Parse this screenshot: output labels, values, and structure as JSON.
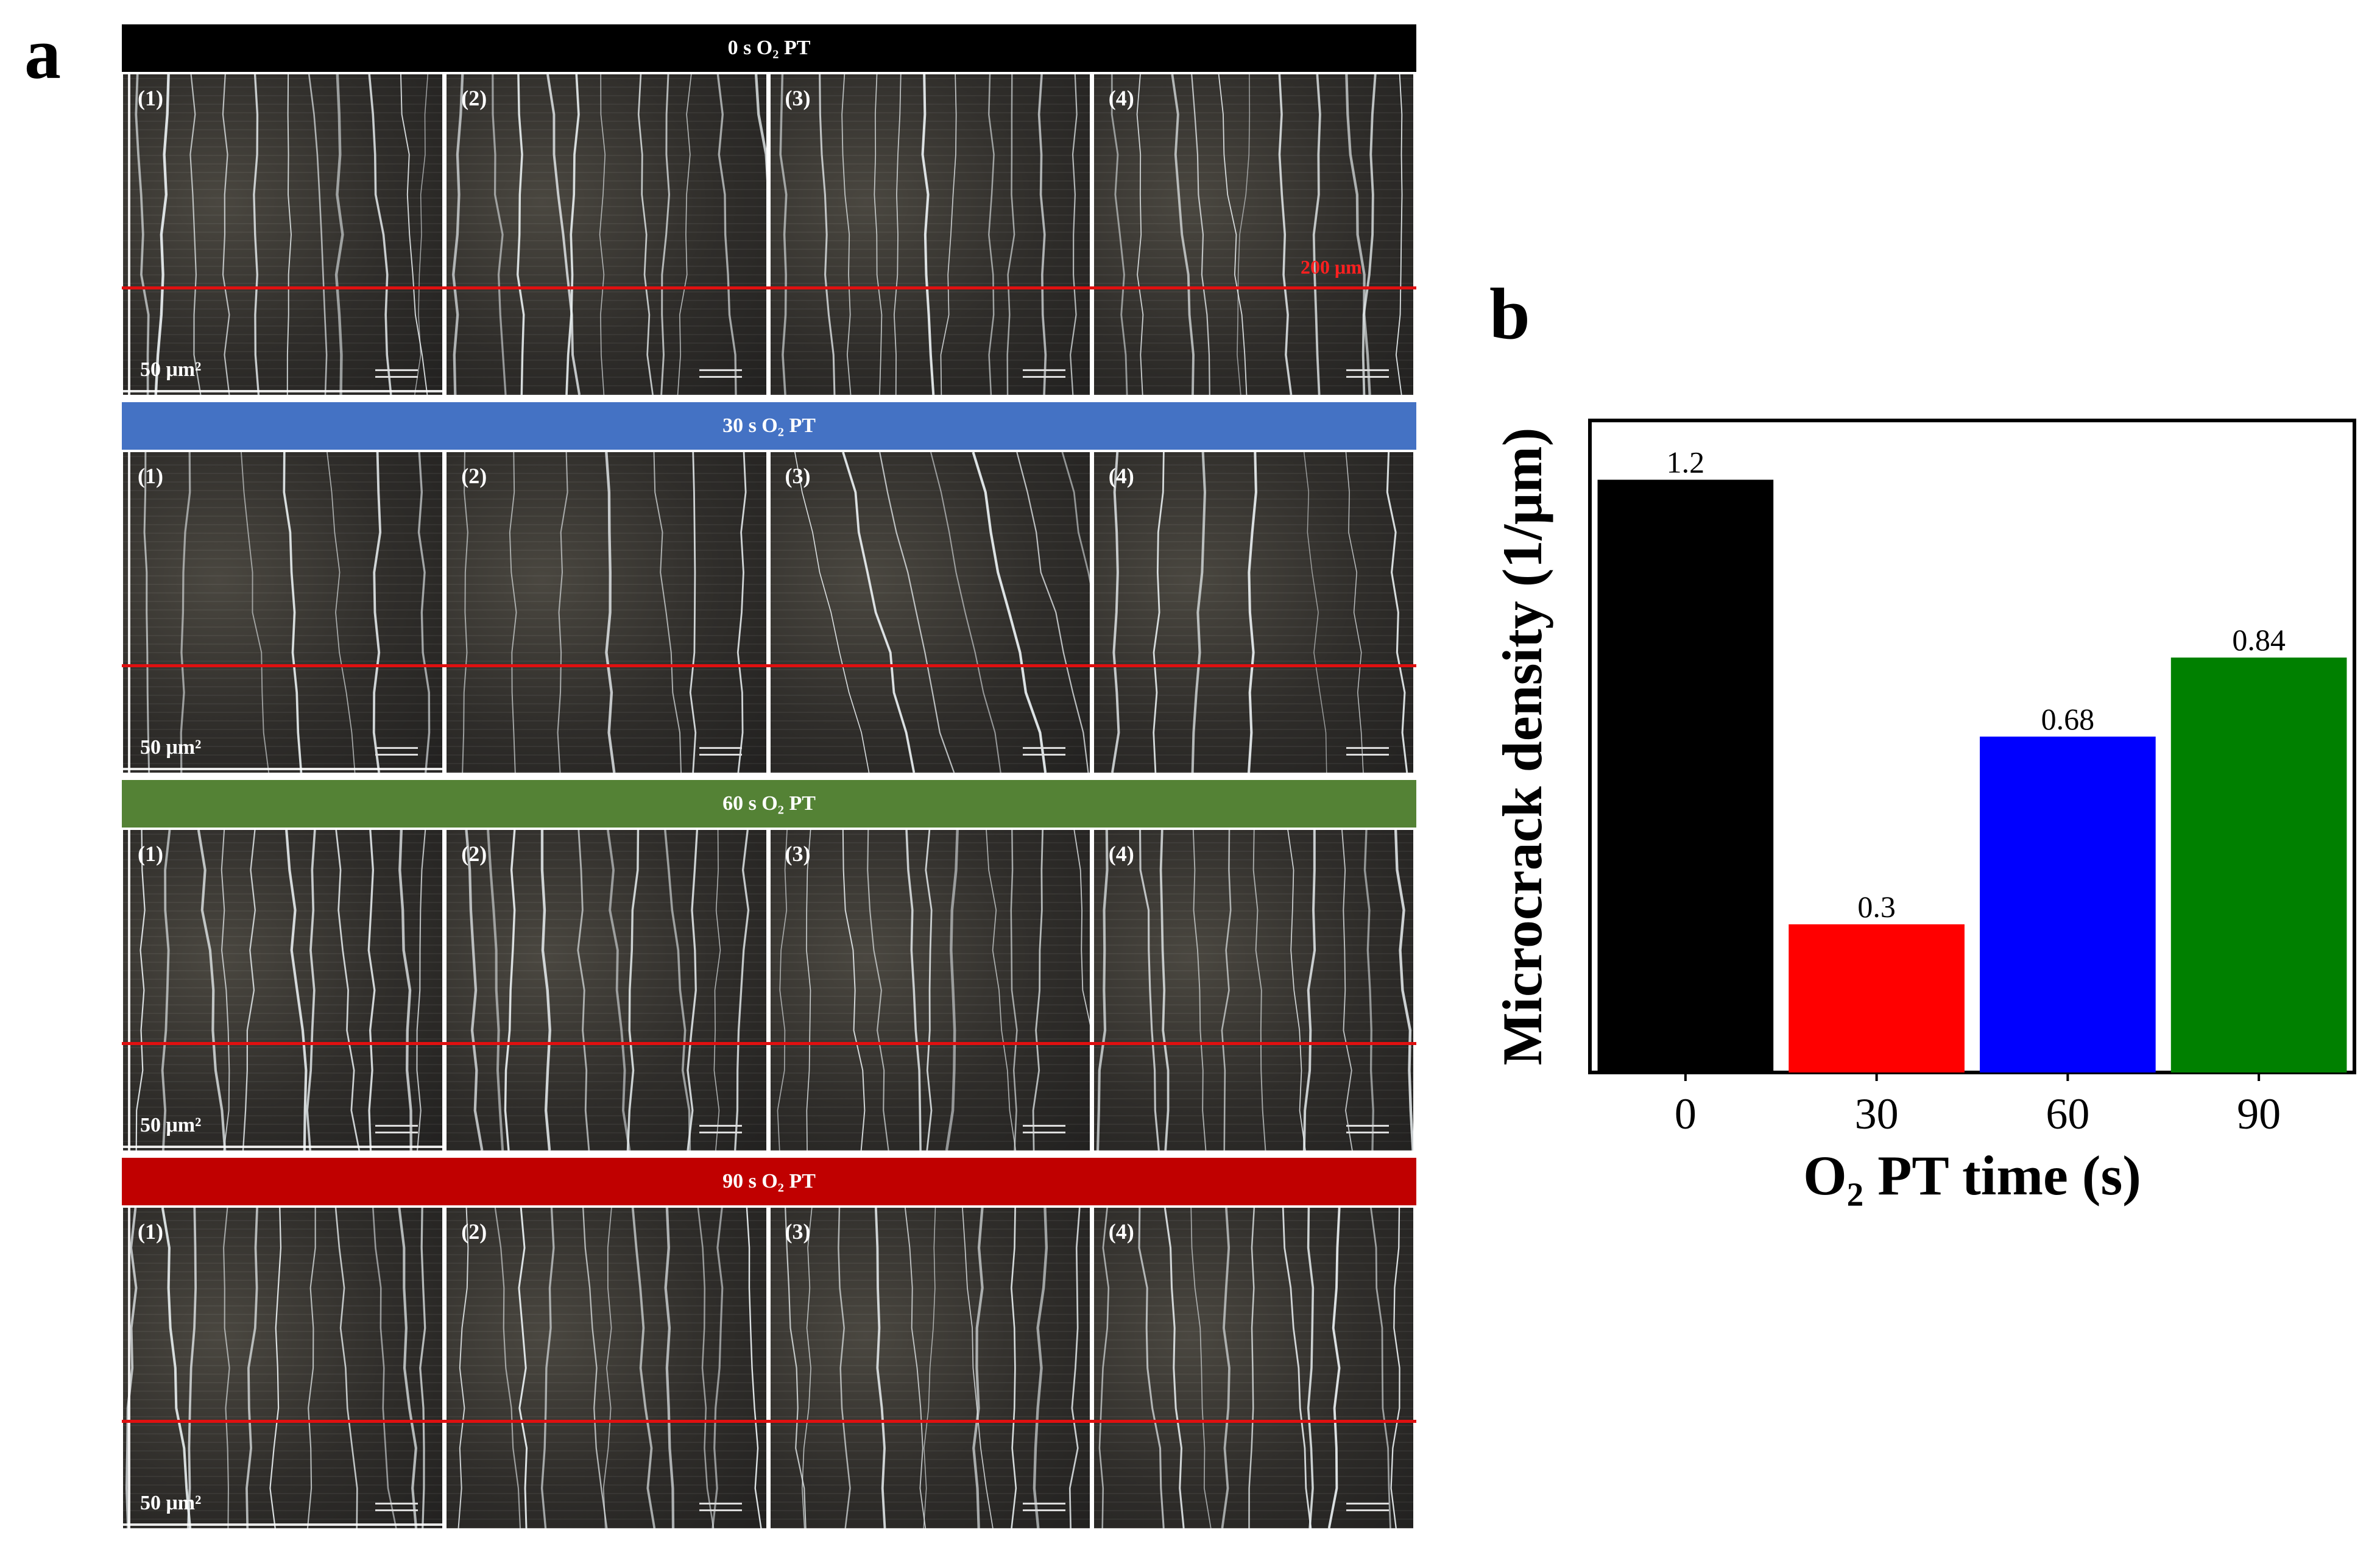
{
  "panel_a": {
    "letter": "a",
    "groups": [
      {
        "header": "0 s O₂ PT",
        "color": "#000000",
        "scale_note": "50 μm²",
        "annotation": "200 μm"
      },
      {
        "header": "30 s O₂ PT",
        "color": "#4472c4",
        "scale_note": "50 μm²"
      },
      {
        "header": "60 s O₂ PT",
        "color": "#548235",
        "scale_note": "50 μm²"
      },
      {
        "header": "90 s O₂ PT",
        "color": "#c00000",
        "scale_note": "50 μm²"
      }
    ],
    "tile_labels": [
      "(1)",
      "(2)",
      "(3)",
      "(4)"
    ]
  },
  "panel_b": {
    "letter": "b"
  },
  "chart_data": {
    "type": "bar",
    "categories": [
      "0",
      "30",
      "60",
      "90"
    ],
    "values": [
      1.2,
      0.3,
      0.68,
      0.84
    ],
    "value_labels": [
      "1.2",
      "0.3",
      "0.68",
      "0.84"
    ],
    "colors": [
      "#000000",
      "#ff0000",
      "#0000ff",
      "#008000"
    ],
    "title": "",
    "xlabel": "O₂ PT time (s)",
    "ylabel": "Microcrack density (1/μm)",
    "ylim": [
      0,
      1.32
    ],
    "yticks": false,
    "grid": false,
    "legend": "none"
  }
}
